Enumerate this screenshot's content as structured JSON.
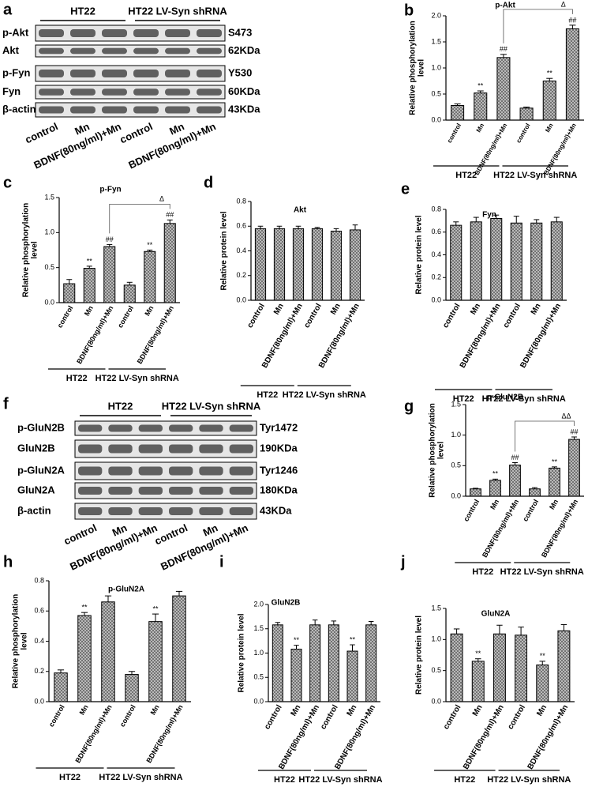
{
  "blots": [
    {
      "panel": "a",
      "groups": [
        "HT22",
        "HT22 LV-Syn shRNA"
      ],
      "rows": [
        {
          "label": "p-Akt",
          "note": "S473"
        },
        {
          "label": "Akt",
          "note": "62KDa"
        },
        {
          "label": "p-Fyn",
          "note": "Y530"
        },
        {
          "label": "Fyn",
          "note": "60KDa"
        },
        {
          "label": "β-actin",
          "note": "43KDa"
        }
      ],
      "lanes": [
        "control",
        "Mn",
        "BDNF(80ng/ml)+Mn",
        "control",
        "Mn",
        "BDNF(80ng/ml)+Mn"
      ]
    },
    {
      "panel": "f",
      "groups": [
        "HT22",
        "HT22 LV-Syn shRNA"
      ],
      "rows": [
        {
          "label": "p-GluN2B",
          "note": "Tyr1472"
        },
        {
          "label": "GluN2B",
          "note": "190KDa"
        },
        {
          "label": "p-GluN2A",
          "note": "Tyr1246"
        },
        {
          "label": "GluN2A",
          "note": "180KDa"
        },
        {
          "label": "β-actin",
          "note": "43KDa"
        }
      ],
      "lanes": [
        "control",
        "Mn",
        "BDNF(80ng/ml)+Mn",
        "control",
        "Mn",
        "BDNF(80ng/ml)+Mn"
      ]
    }
  ],
  "chart_data": [
    {
      "type": "bar",
      "panel": "b",
      "title": "p-Akt",
      "ylabel": [
        "Relative phosphorylation",
        "level"
      ],
      "categories": [
        "control",
        "Mn",
        "BDNF(80ng/ml)+Mn",
        "control",
        "Mn",
        "BDNF(80ng/ml)+Mn"
      ],
      "groups": [
        "HT22",
        "HT22 LV-Syn shRNA"
      ],
      "values": [
        0.28,
        0.52,
        1.2,
        0.23,
        0.75,
        1.75
      ],
      "errors": [
        0.03,
        0.04,
        0.06,
        0.02,
        0.05,
        0.07
      ],
      "annotations": [
        null,
        "**",
        "##",
        null,
        "**",
        "##"
      ],
      "bracket": {
        "label": "Δ",
        "bars": [
          2,
          5
        ]
      },
      "ylim": [
        0,
        2
      ],
      "yticks": [
        {
          "value": 0,
          "label": "0.0"
        },
        0.5,
        {
          "value": 1,
          "label": "1.0"
        },
        1.5,
        {
          "value": 2,
          "label": "2.0"
        }
      ]
    },
    {
      "type": "bar",
      "panel": "c",
      "title": "p-Fyn",
      "ylabel": [
        "Relative phosphorylation",
        "level"
      ],
      "categories": [
        "control",
        "Mn",
        "BDNF(80ng/ml)+Mn",
        "control",
        "Mn",
        "BDNF(80ng/ml)+Mn"
      ],
      "groups": [
        "HT22",
        "HT22 LV-Syn shRNA"
      ],
      "values": [
        0.27,
        0.49,
        0.8,
        0.25,
        0.73,
        1.13
      ],
      "errors": [
        0.06,
        0.03,
        0.03,
        0.04,
        0.02,
        0.05
      ],
      "annotations": [
        null,
        "**",
        "##",
        null,
        "**",
        "##"
      ],
      "bracket": {
        "label": "Δ",
        "bars": [
          2,
          5
        ]
      },
      "ylim": [
        0,
        1.5
      ],
      "yticks": [
        {
          "value": 0,
          "label": "0.0"
        },
        0.5,
        {
          "value": 1,
          "label": "1.0"
        },
        1.5
      ]
    },
    {
      "type": "bar",
      "panel": "d",
      "title": "Akt",
      "ylabel": [
        "Relative protein level"
      ],
      "categories": [
        "control",
        "Mn",
        "BDNF(80ng/ml)+Mn",
        "control",
        "Mn",
        "BDNF(80ng/ml)+Mn"
      ],
      "groups": [
        "HT22",
        "HT22 LV-Syn shRNA"
      ],
      "values": [
        0.58,
        0.58,
        0.58,
        0.58,
        0.56,
        0.57
      ],
      "errors": [
        0.02,
        0.02,
        0.02,
        0.01,
        0.02,
        0.04
      ],
      "ylim": [
        0,
        0.8
      ],
      "yticks": [
        {
          "value": 0,
          "label": "0.0"
        },
        0.2,
        0.4,
        0.6,
        0.8
      ]
    },
    {
      "type": "bar",
      "panel": "e",
      "title": "Fyn",
      "ylabel": [
        "Relative protein level"
      ],
      "categories": [
        "control",
        "Mn",
        "BDNF(80ng/ml)+Mn",
        "control",
        "Mn",
        "BDNF(80ng/ml)+Mn"
      ],
      "groups": [
        "HT22",
        "HT22 LV-Syn shRNA"
      ],
      "values": [
        0.66,
        0.69,
        0.72,
        0.68,
        0.68,
        0.69
      ],
      "errors": [
        0.03,
        0.04,
        0.03,
        0.06,
        0.03,
        0.04
      ],
      "ylim": [
        0,
        0.8
      ],
      "yticks": [
        {
          "value": 0,
          "label": "0.0"
        },
        0.2,
        0.4,
        0.6,
        0.8
      ]
    },
    {
      "type": "bar",
      "panel": "g",
      "title": "p-GluN2B",
      "ylabel": [
        "Relative phosphorylation",
        "level"
      ],
      "categories": [
        "control",
        "Mn",
        "BDNF(80ng/ml)+Mn",
        "control",
        "Mn",
        "BDNF(80ng/ml)+Mn"
      ],
      "groups": [
        "HT22",
        "HT22 LV-Syn shRNA"
      ],
      "values": [
        0.12,
        0.26,
        0.51,
        0.12,
        0.46,
        0.93
      ],
      "errors": [
        0.01,
        0.02,
        0.04,
        0.02,
        0.02,
        0.04
      ],
      "annotations": [
        null,
        "**",
        "##",
        null,
        "**",
        "##"
      ],
      "bracket": {
        "label": "ΔΔ",
        "bars": [
          2,
          5
        ]
      },
      "ylim": [
        0,
        1.5
      ],
      "yticks": [
        {
          "value": 0,
          "label": "0.0"
        },
        0.5,
        {
          "value": 1,
          "label": "1.0"
        },
        1.5
      ]
    },
    {
      "type": "bar",
      "panel": "h",
      "title": "p-GluN2A",
      "ylabel": [
        "Relative phosphorylation",
        "level"
      ],
      "categories": [
        "control",
        "Mn",
        "BDNF(80ng/ml)+Mn",
        "control",
        "Mn",
        "BDNF(80ng/ml)+Mn"
      ],
      "groups": [
        "HT22",
        "HT22 LV-Syn shRNA"
      ],
      "values": [
        0.19,
        0.57,
        0.66,
        0.18,
        0.53,
        0.7
      ],
      "errors": [
        0.02,
        0.02,
        0.04,
        0.02,
        0.05,
        0.03
      ],
      "annotations": [
        null,
        "**",
        null,
        null,
        "**",
        null
      ],
      "ylim": [
        0,
        0.8
      ],
      "yticks": [
        {
          "value": 0,
          "label": "0.0"
        },
        0.2,
        0.4,
        0.6,
        0.8
      ]
    },
    {
      "type": "bar",
      "panel": "i",
      "title": "GluN2B",
      "ylabel": [
        "Relative protein level"
      ],
      "categories": [
        "control",
        "Mn",
        "BDNF(80ng/ml)+Mn",
        "control",
        "Mn",
        "BDNF(80ng/ml)+Mn"
      ],
      "groups": [
        "HT22",
        "HT22 LV-Syn shRNA"
      ],
      "values": [
        1.58,
        1.08,
        1.58,
        1.58,
        1.04,
        1.58
      ],
      "errors": [
        0.05,
        0.08,
        0.1,
        0.08,
        0.13,
        0.07
      ],
      "annotations": [
        null,
        "**",
        null,
        null,
        "**",
        null
      ],
      "ylim": [
        0,
        2
      ],
      "yticks": [
        {
          "value": 0,
          "label": "0.0"
        },
        0.5,
        {
          "value": 1,
          "label": "1.0"
        },
        1.5,
        {
          "value": 2,
          "label": "2.0"
        }
      ]
    },
    {
      "type": "bar",
      "panel": "j",
      "title": "GluN2A",
      "ylabel": [
        "Relative protein level"
      ],
      "categories": [
        "control",
        "Mn",
        "BDNF(80ng/ml)+Mn",
        "control",
        "Mn",
        "BDNF(80ng/ml)+Mn"
      ],
      "groups": [
        "HT22",
        "HT22 LV-Syn shRNA"
      ],
      "values": [
        1.09,
        0.65,
        1.09,
        1.07,
        0.59,
        1.14
      ],
      "errors": [
        0.08,
        0.04,
        0.14,
        0.13,
        0.06,
        0.1
      ],
      "annotations": [
        null,
        "**",
        null,
        null,
        "**",
        null
      ],
      "ylim": [
        0,
        1.5
      ],
      "yticks": [
        {
          "value": 0,
          "label": "0.0"
        },
        0.5,
        {
          "value": 1,
          "label": "1.0"
        },
        1.5
      ]
    }
  ]
}
